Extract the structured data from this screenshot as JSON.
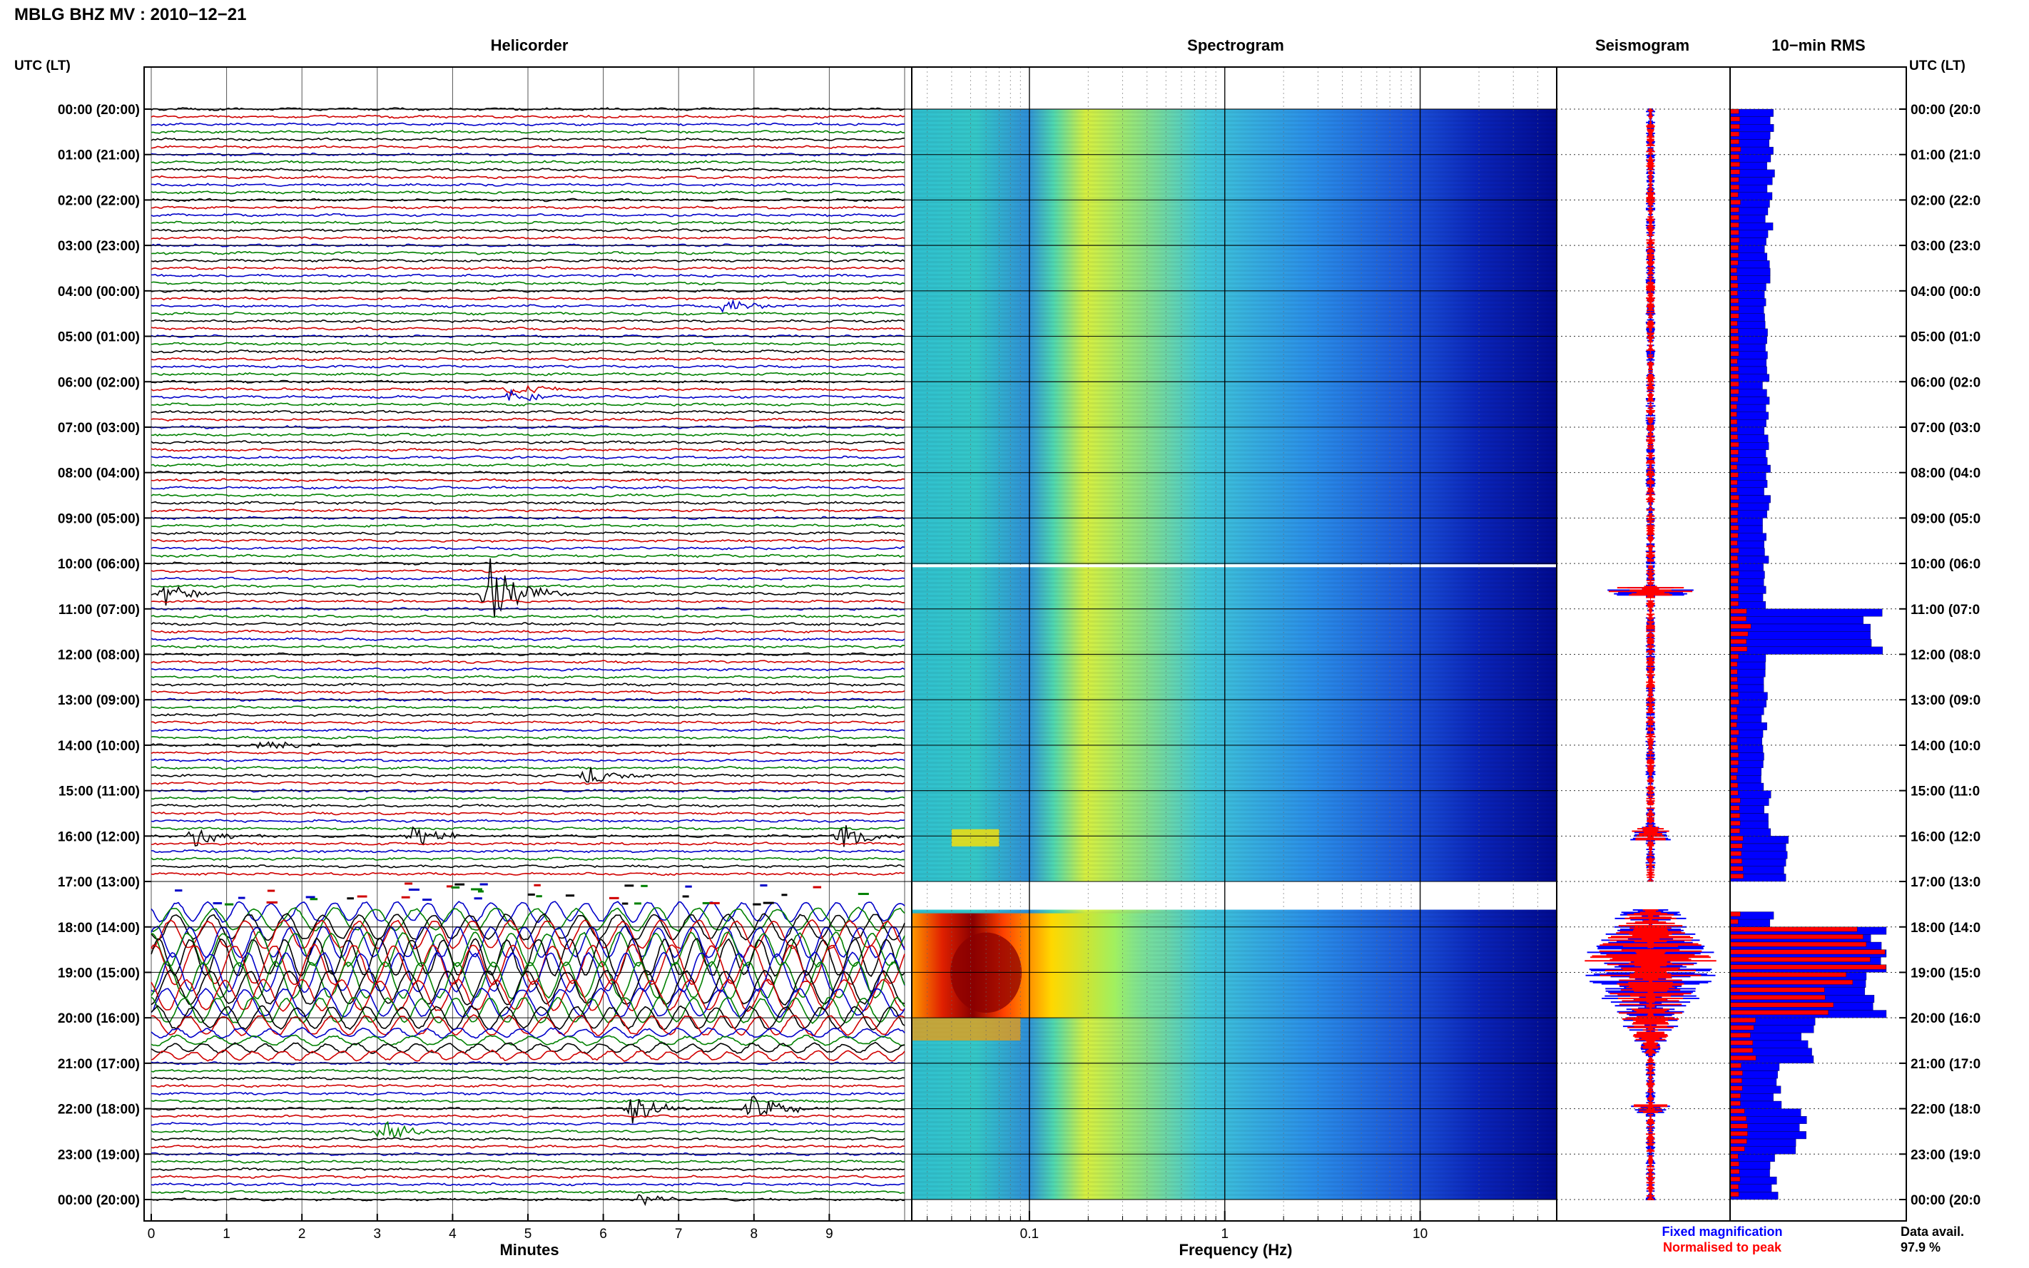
{
  "header": {
    "title": "MBLG BHZ MV : 2010−12−21",
    "time_axis_label_left": "UTC (LT)",
    "time_axis_label_right": "UTC (LT)"
  },
  "panels": {
    "helicorder": "Helicorder",
    "spectrogram": "Spectrogram",
    "seismogram": "Seismogram",
    "rms": "10−min RMS"
  },
  "axes": {
    "helicorder_xlabel": "Minutes",
    "spectrogram_xlabel": "Frequency (Hz)"
  },
  "legend": {
    "fixed": "Fixed magnification",
    "normalised": "Normalised to peak",
    "fixed_color": "#0000ff",
    "normalised_color": "#ff0000"
  },
  "data_availability": {
    "label": "Data avail.",
    "value": "97.9 %"
  },
  "hour_labels": [
    "00:00 (20:00)",
    "01:00 (21:00)",
    "02:00 (22:00)",
    "03:00 (23:00)",
    "04:00 (00:00)",
    "05:00 (01:00)",
    "06:00 (02:00)",
    "07:00 (03:00)",
    "08:00 (04:00)",
    "09:00 (05:00)",
    "10:00 (06:00)",
    "11:00 (07:00)",
    "12:00 (08:00)",
    "13:00 (09:00)",
    "14:00 (10:00)",
    "15:00 (11:00)",
    "16:00 (12:00)",
    "17:00 (13:00)",
    "18:00 (14:00)",
    "19:00 (15:00)",
    "20:00 (16:00)",
    "21:00 (17:00)",
    "22:00 (18:00)",
    "23:00 (19:00)",
    "00:00 (20:00)"
  ],
  "right_hour_labels": [
    "00:00 (20:0",
    "01:00 (21:0",
    "02:00 (22:0",
    "03:00 (23:0",
    "04:00 (00:0",
    "05:00 (01:0",
    "06:00 (02:0",
    "07:00 (03:0",
    "08:00 (04:0",
    "09:00 (05:0",
    "10:00 (06:0",
    "11:00 (07:0",
    "12:00 (08:0",
    "13:00 (09:0",
    "14:00 (10:0",
    "15:00 (11:0",
    "16:00 (12:0",
    "17:00 (13:0",
    "18:00 (14:0",
    "19:00 (15:0",
    "20:00 (16:0",
    "21:00 (17:0",
    "22:00 (18:0",
    "23:00 (19:0",
    "00:00 (20:0"
  ],
  "minute_ticks": [
    "0",
    "1",
    "2",
    "3",
    "4",
    "5",
    "6",
    "7",
    "8",
    "9"
  ],
  "frequency_ticks": [
    "0.1",
    "1",
    "10"
  ],
  "colors": {
    "trace_colors": [
      "#000000",
      "#d00000",
      "#0000c8",
      "#008000"
    ],
    "spectro_low": "#00008b",
    "spectro_high": "#8b0000"
  },
  "chart_data": {
    "type": "heatmap",
    "helicorder": {
      "x_range_minutes": [
        0,
        10
      ],
      "rows_per_hour": 6,
      "row_count": 144,
      "trace_color_cycle": [
        "black",
        "red",
        "blue",
        "green"
      ],
      "gaps_hours": [
        [
          10.02,
          10.05
        ],
        [
          17.0,
          17.62
        ]
      ],
      "events": [
        {
          "time_h": 4.4,
          "minute": 7.6,
          "amp": 0.4
        },
        {
          "time_h": 6.25,
          "minute": 4.8,
          "amp": 0.35
        },
        {
          "time_h": 10.6,
          "minute": 0.2,
          "amp": 0.6
        },
        {
          "time_h": 10.6,
          "minute": 4.5,
          "amp": 1.8
        },
        {
          "time_h": 14.05,
          "minute": 1.5,
          "amp": 0.35
        },
        {
          "time_h": 14.6,
          "minute": 5.8,
          "amp": 0.45
        },
        {
          "time_h": 15.95,
          "minute": 0.6,
          "amp": 0.5
        },
        {
          "time_h": 15.95,
          "minute": 3.5,
          "amp": 0.6
        },
        {
          "time_h": 15.95,
          "minute": 9.2,
          "amp": 0.6
        },
        {
          "time_h": 22.0,
          "minute": 6.4,
          "amp": 0.7
        },
        {
          "time_h": 22.0,
          "minute": 8.0,
          "amp": 0.7
        },
        {
          "time_h": 22.45,
          "minute": 3.1,
          "amp": 0.55
        },
        {
          "time_h": 24.0,
          "minute": 6.5,
          "amp": 0.35
        }
      ],
      "strong_motion_hours": [
        17.62,
        20.2
      ]
    },
    "spectrogram": {
      "x_scale": "log",
      "x_range_hz": [
        0.025,
        50
      ],
      "y_range_hours": [
        0,
        24
      ],
      "energy_peak_hz": 0.06,
      "energy_peak_hours": [
        17.7,
        20.0
      ]
    },
    "seismogram": {
      "series": [
        {
          "name": "Fixed magnification",
          "color": "blue"
        },
        {
          "name": "Normalised to peak",
          "color": "red"
        }
      ],
      "max_amplitude_hours": [
        18.2,
        19.5
      ]
    },
    "rms": {
      "bin_minutes": 10,
      "series": [
        {
          "name": "Fixed magnification",
          "color": "blue"
        },
        {
          "name": "Normalised to peak",
          "color": "red"
        }
      ],
      "hourly_blue": [
        0.26,
        0.26,
        0.25,
        0.24,
        0.24,
        0.24,
        0.23,
        0.24,
        0.24,
        0.23,
        0.22,
        0.9,
        0.22,
        0.22,
        0.22,
        0.24,
        0.35,
        0.28,
        1.0,
        0.95,
        0.5,
        0.3,
        0.45,
        0.28
      ],
      "hourly_red": [
        0.06,
        0.06,
        0.06,
        0.05,
        0.05,
        0.05,
        0.05,
        0.05,
        0.05,
        0.05,
        0.05,
        0.12,
        0.05,
        0.05,
        0.05,
        0.06,
        0.08,
        0.06,
        0.9,
        0.7,
        0.15,
        0.07,
        0.1,
        0.06
      ]
    }
  }
}
